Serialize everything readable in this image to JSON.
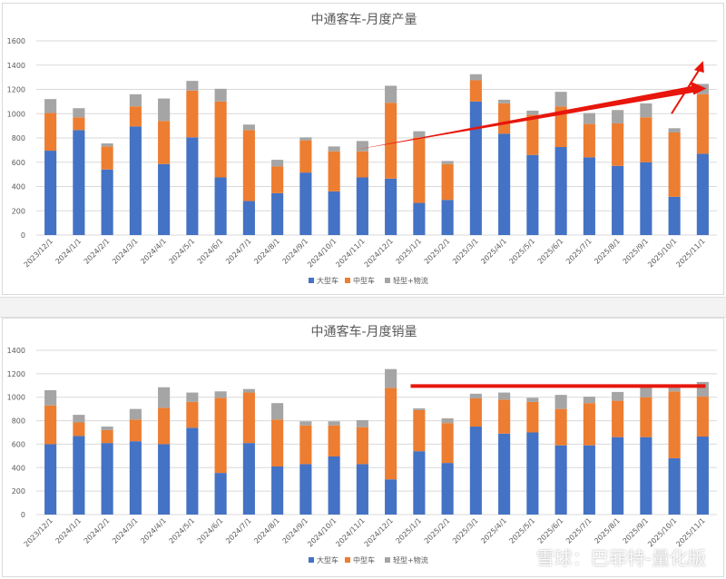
{
  "colors": {
    "large": "#4472c4",
    "medium": "#ed7d31",
    "light": "#a5a5a5",
    "grid": "#d9d9d9",
    "annotation": "#e8160c",
    "text": "#595959"
  },
  "watermark": "雪球：巴菲特-量化版",
  "chart_data": [
    {
      "type": "bar",
      "stacked": true,
      "title": "中通客车-月度产量",
      "categories": [
        "2023/12/1",
        "2024/1/1",
        "2024/2/1",
        "2024/3/1",
        "2024/4/1",
        "2024/5/1",
        "2024/6/1",
        "2024/7/1",
        "2024/8/1",
        "2024/9/1",
        "2024/10/1",
        "2024/11/1",
        "2024/12/1",
        "2025/1/1",
        "2025/2/1",
        "2025/3/1",
        "2025/4/1",
        "2025/5/1",
        "2025/6/1",
        "2025/7/1",
        "2025/8/1",
        "2025/9/1",
        "2025/10/1",
        "2025/11/1"
      ],
      "ylim": [
        0,
        1600
      ],
      "yticks": [
        "0",
        "200",
        "400",
        "600",
        "800",
        "1000",
        "1200",
        "1400",
        "1600"
      ],
      "legend_position": "bottom",
      "series": [
        {
          "name": "大型车",
          "values": [
            695,
            865,
            540,
            895,
            585,
            805,
            475,
            280,
            345,
            515,
            360,
            475,
            465,
            265,
            290,
            1100,
            835,
            660,
            725,
            640,
            570,
            600,
            315,
            670
          ]
        },
        {
          "name": "中型车",
          "values": [
            310,
            105,
            190,
            165,
            355,
            385,
            625,
            585,
            220,
            265,
            330,
            215,
            625,
            540,
            295,
            175,
            250,
            330,
            335,
            275,
            350,
            370,
            530,
            490
          ]
        },
        {
          "name": "轻型+物流",
          "values": [
            115,
            75,
            25,
            100,
            185,
            80,
            105,
            45,
            55,
            25,
            40,
            85,
            140,
            50,
            25,
            50,
            30,
            35,
            120,
            90,
            110,
            115,
            35,
            85
          ]
        }
      ],
      "annotation": "upward-trend-arrow"
    },
    {
      "type": "bar",
      "stacked": true,
      "title": "中通客车-月度销量",
      "categories": [
        "2023/12/1",
        "2024/1/1",
        "2024/2/1",
        "2024/3/1",
        "2024/4/1",
        "2024/5/1",
        "2024/6/1",
        "2024/7/1",
        "2024/8/1",
        "2024/9/1",
        "2024/10/1",
        "2024/11/1",
        "2024/12/1",
        "2025/1/1",
        "2025/2/1",
        "2025/3/1",
        "2025/4/1",
        "2025/5/1",
        "2025/6/1",
        "2025/7/1",
        "2025/8/1",
        "2025/9/1",
        "2025/10/1",
        "2025/11/1"
      ],
      "ylim": [
        0,
        1400
      ],
      "yticks": [
        "0",
        "200",
        "400",
        "600",
        "800",
        "1000",
        "1200",
        "1400"
      ],
      "legend_position": "bottom",
      "series": [
        {
          "name": "大型车",
          "values": [
            600,
            670,
            610,
            625,
            600,
            740,
            355,
            610,
            410,
            430,
            495,
            430,
            300,
            540,
            440,
            750,
            690,
            700,
            590,
            590,
            660,
            660,
            480,
            665
          ]
        },
        {
          "name": "中型车",
          "values": [
            330,
            115,
            110,
            185,
            310,
            220,
            640,
            430,
            400,
            330,
            265,
            315,
            780,
            350,
            340,
            240,
            290,
            260,
            310,
            360,
            310,
            340,
            570,
            340
          ]
        },
        {
          "name": "轻型+物流",
          "values": [
            130,
            65,
            30,
            90,
            175,
            80,
            55,
            30,
            140,
            35,
            35,
            60,
            160,
            15,
            40,
            40,
            60,
            35,
            120,
            55,
            75,
            95,
            60,
            125
          ]
        }
      ],
      "annotation": "flat-level-line"
    }
  ]
}
